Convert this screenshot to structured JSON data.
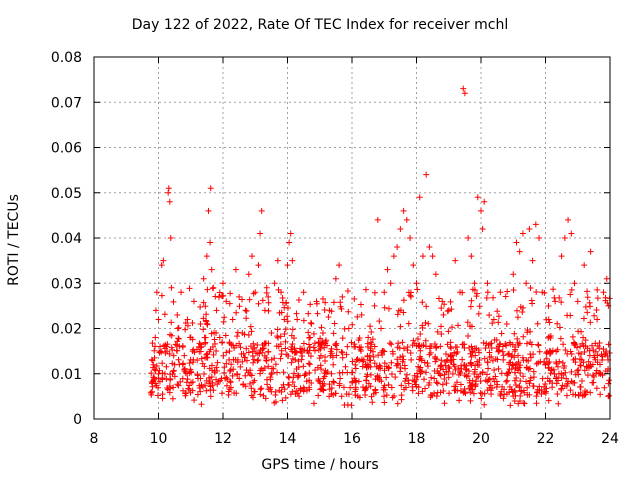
{
  "chart_data": {
    "type": "scatter",
    "title": "Day 122 of 2022, Rate Of TEC Index for receiver mchl",
    "xlabel": "GPS time / hours",
    "ylabel": "ROTI / TECUs",
    "xlim": [
      8,
      24
    ],
    "ylim": [
      0,
      0.08
    ],
    "xticks": [
      8,
      10,
      12,
      14,
      16,
      18,
      20,
      22,
      24
    ],
    "yticks": [
      0,
      0.01,
      0.02,
      0.03,
      0.04,
      0.05,
      0.06,
      0.07,
      0.08
    ],
    "xtick_labels": [
      "8",
      "10",
      "12",
      "14",
      "16",
      "18",
      "20",
      "22",
      "24"
    ],
    "ytick_labels": [
      "0",
      "0.01",
      "0.02",
      "0.03",
      "0.04",
      "0.05",
      "0.06",
      "0.07",
      "0.08"
    ],
    "grid": true,
    "marker": "+",
    "color": "#ff0000",
    "series": [
      {
        "name": "ROTI",
        "points": [
          [
            9.8,
            0.006
          ],
          [
            9.85,
            0.012
          ],
          [
            9.9,
            0.018
          ],
          [
            9.92,
            0.024
          ],
          [
            9.95,
            0.028
          ],
          [
            10.0,
            0.022
          ],
          [
            10.05,
            0.015
          ],
          [
            10.1,
            0.034
          ],
          [
            10.15,
            0.035
          ],
          [
            10.2,
            0.01
          ],
          [
            10.25,
            0.016
          ],
          [
            10.3,
            0.05
          ],
          [
            10.32,
            0.051
          ],
          [
            10.35,
            0.048
          ],
          [
            10.38,
            0.04
          ],
          [
            10.4,
            0.029
          ],
          [
            10.5,
            0.012
          ],
          [
            10.6,
            0.02
          ],
          [
            10.7,
            0.028
          ],
          [
            10.8,
            0.014
          ],
          [
            10.9,
            0.022
          ],
          [
            11.0,
            0.018
          ],
          [
            11.1,
            0.026
          ],
          [
            11.2,
            0.013
          ],
          [
            11.3,
            0.021
          ],
          [
            11.4,
            0.031
          ],
          [
            11.5,
            0.036
          ],
          [
            11.55,
            0.046
          ],
          [
            11.6,
            0.039
          ],
          [
            11.62,
            0.051
          ],
          [
            11.65,
            0.033
          ],
          [
            11.7,
            0.029
          ],
          [
            11.8,
            0.024
          ],
          [
            11.9,
            0.018
          ],
          [
            12.0,
            0.03
          ],
          [
            12.1,
            0.026
          ],
          [
            12.2,
            0.015
          ],
          [
            12.3,
            0.022
          ],
          [
            12.4,
            0.033
          ],
          [
            12.5,
            0.027
          ],
          [
            12.6,
            0.019
          ],
          [
            12.7,
            0.024
          ],
          [
            12.8,
            0.032
          ],
          [
            12.9,
            0.036
          ],
          [
            13.0,
            0.028
          ],
          [
            13.1,
            0.034
          ],
          [
            13.15,
            0.041
          ],
          [
            13.2,
            0.046
          ],
          [
            13.3,
            0.024
          ],
          [
            13.4,
            0.027
          ],
          [
            13.5,
            0.019
          ],
          [
            13.6,
            0.03
          ],
          [
            13.7,
            0.035
          ],
          [
            13.8,
            0.028
          ],
          [
            13.9,
            0.022
          ],
          [
            14.0,
            0.034
          ],
          [
            14.05,
            0.039
          ],
          [
            14.1,
            0.041
          ],
          [
            14.15,
            0.035
          ],
          [
            14.3,
            0.022
          ],
          [
            14.5,
            0.028
          ],
          [
            14.7,
            0.018
          ],
          [
            14.9,
            0.026
          ],
          [
            15.1,
            0.019
          ],
          [
            15.3,
            0.024
          ],
          [
            15.5,
            0.031
          ],
          [
            15.6,
            0.034
          ],
          [
            15.7,
            0.027
          ],
          [
            15.9,
            0.02
          ],
          [
            16.1,
            0.016
          ],
          [
            16.3,
            0.023
          ],
          [
            16.5,
            0.018
          ],
          [
            16.7,
            0.025
          ],
          [
            16.8,
            0.044
          ],
          [
            16.9,
            0.02
          ],
          [
            17.0,
            0.028
          ],
          [
            17.1,
            0.033
          ],
          [
            17.2,
            0.03
          ],
          [
            17.3,
            0.036
          ],
          [
            17.4,
            0.038
          ],
          [
            17.5,
            0.042
          ],
          [
            17.6,
            0.046
          ],
          [
            17.7,
            0.044
          ],
          [
            17.8,
            0.04
          ],
          [
            17.9,
            0.034
          ],
          [
            18.0,
            0.03
          ],
          [
            18.1,
            0.049
          ],
          [
            18.2,
            0.036
          ],
          [
            18.3,
            0.054
          ],
          [
            18.4,
            0.038
          ],
          [
            18.5,
            0.036
          ],
          [
            18.6,
            0.032
          ],
          [
            18.8,
            0.026
          ],
          [
            19.0,
            0.024
          ],
          [
            19.2,
            0.035
          ],
          [
            19.35,
            0.028
          ],
          [
            19.45,
            0.073
          ],
          [
            19.5,
            0.072
          ],
          [
            19.6,
            0.04
          ],
          [
            19.7,
            0.036
          ],
          [
            19.8,
            0.03
          ],
          [
            19.9,
            0.049
          ],
          [
            20.0,
            0.046
          ],
          [
            20.05,
            0.042
          ],
          [
            20.1,
            0.048
          ],
          [
            20.2,
            0.03
          ],
          [
            20.4,
            0.022
          ],
          [
            20.6,
            0.028
          ],
          [
            20.8,
            0.021
          ],
          [
            21.0,
            0.032
          ],
          [
            21.1,
            0.039
          ],
          [
            21.2,
            0.037
          ],
          [
            21.3,
            0.041
          ],
          [
            21.4,
            0.03
          ],
          [
            21.5,
            0.042
          ],
          [
            21.6,
            0.035
          ],
          [
            21.7,
            0.043
          ],
          [
            21.8,
            0.04
          ],
          [
            21.9,
            0.028
          ],
          [
            22.1,
            0.022
          ],
          [
            22.3,
            0.026
          ],
          [
            22.5,
            0.036
          ],
          [
            22.6,
            0.04
          ],
          [
            22.7,
            0.044
          ],
          [
            22.8,
            0.041
          ],
          [
            22.9,
            0.03
          ],
          [
            23.0,
            0.026
          ],
          [
            23.2,
            0.034
          ],
          [
            23.4,
            0.037
          ],
          [
            23.6,
            0.022
          ],
          [
            23.8,
            0.028
          ],
          [
            23.9,
            0.031
          ],
          [
            23.95,
            0.025
          ]
        ],
        "dense_band": {
          "x_start": 9.75,
          "x_end": 24.0,
          "typical_range": [
            0.005,
            0.017
          ],
          "min": 0.003,
          "count": 1400
        }
      }
    ]
  }
}
